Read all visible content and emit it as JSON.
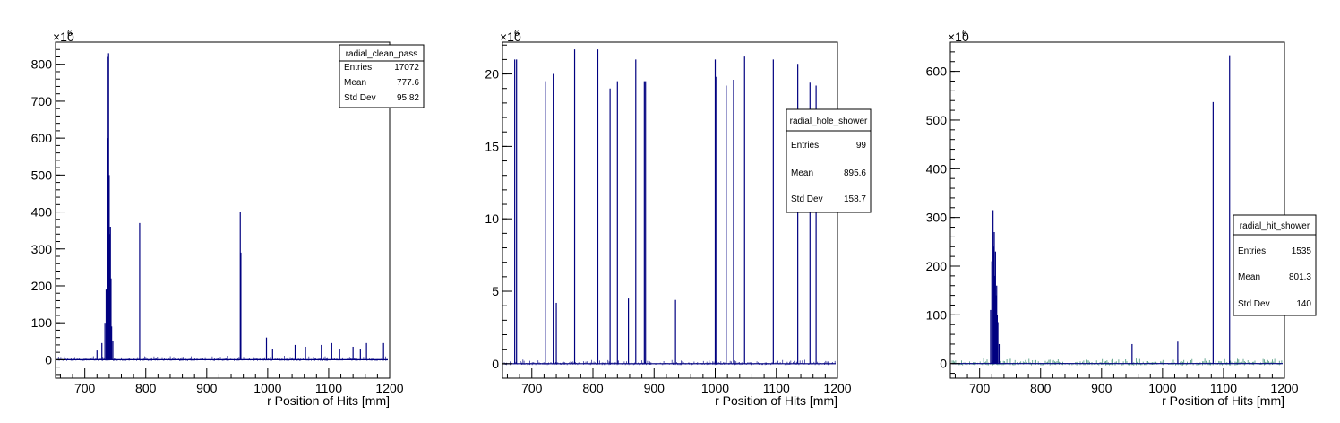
{
  "colors": {
    "hist": "#000080",
    "hist_alt": "#1a7a5a",
    "axis": "#000000"
  },
  "chart_data": [
    {
      "type": "bar",
      "name": "radial_clean_pass",
      "xlabel": "r Position of Hits [mm]",
      "ylabel": "",
      "y_multiplier": "×10",
      "y_exponent": "6",
      "xlim": [
        652,
        1200
      ],
      "ylim": [
        -50,
        860
      ],
      "xticks": [
        700,
        800,
        900,
        1000,
        1100,
        1200
      ],
      "yticks": [
        0,
        100,
        200,
        300,
        400,
        500,
        600,
        700,
        800
      ],
      "stats": {
        "title": "radial_clean_pass",
        "rows": [
          {
            "label": "Entries",
            "value": "17072"
          },
          {
            "label": "Mean",
            "value": "777.6"
          },
          {
            "label": "Std Dev",
            "value": "95.82"
          }
        ]
      },
      "spikes": [
        {
          "x": 720,
          "y": 25
        },
        {
          "x": 728,
          "y": 45
        },
        {
          "x": 733,
          "y": 100
        },
        {
          "x": 735,
          "y": 190
        },
        {
          "x": 737,
          "y": 820
        },
        {
          "x": 738,
          "y": 600
        },
        {
          "x": 739,
          "y": 830
        },
        {
          "x": 740,
          "y": 500
        },
        {
          "x": 741,
          "y": 340
        },
        {
          "x": 742,
          "y": 360
        },
        {
          "x": 743,
          "y": 220
        },
        {
          "x": 744,
          "y": 90
        },
        {
          "x": 746,
          "y": 50
        },
        {
          "x": 790,
          "y": 370
        },
        {
          "x": 955,
          "y": 400
        },
        {
          "x": 956,
          "y": 290
        },
        {
          "x": 998,
          "y": 60
        },
        {
          "x": 1008,
          "y": 30
        },
        {
          "x": 1045,
          "y": 40
        },
        {
          "x": 1062,
          "y": 35
        },
        {
          "x": 1088,
          "y": 40
        },
        {
          "x": 1105,
          "y": 45
        },
        {
          "x": 1118,
          "y": 30
        },
        {
          "x": 1140,
          "y": 35
        },
        {
          "x": 1152,
          "y": 30
        },
        {
          "x": 1162,
          "y": 45
        },
        {
          "x": 1190,
          "y": 45
        }
      ],
      "noise_level": 12
    },
    {
      "type": "bar",
      "name": "radial_hole_shower",
      "xlabel": "r Position of Hits [mm]",
      "ylabel": "",
      "y_multiplier": "×10",
      "y_exponent": "6",
      "xlim": [
        652,
        1200
      ],
      "ylim": [
        -1,
        22.2
      ],
      "xticks": [
        700,
        800,
        900,
        1000,
        1100,
        1200
      ],
      "yticks": [
        0,
        5,
        10,
        15,
        20
      ],
      "stats": {
        "title": "radial_hole_shower",
        "rows": [
          {
            "label": "Entries",
            "value": "99"
          },
          {
            "label": "Mean",
            "value": "895.6"
          },
          {
            "label": "Std Dev",
            "value": "158.7"
          }
        ]
      },
      "spikes": [
        {
          "x": 672,
          "y": 21
        },
        {
          "x": 675,
          "y": 21
        },
        {
          "x": 722,
          "y": 19.5
        },
        {
          "x": 735,
          "y": 20
        },
        {
          "x": 740,
          "y": 4.2
        },
        {
          "x": 770,
          "y": 21.7
        },
        {
          "x": 808,
          "y": 21.7
        },
        {
          "x": 828,
          "y": 19
        },
        {
          "x": 840,
          "y": 19.5
        },
        {
          "x": 858,
          "y": 4.5
        },
        {
          "x": 870,
          "y": 21
        },
        {
          "x": 884,
          "y": 19.5
        },
        {
          "x": 886,
          "y": 19.5
        },
        {
          "x": 935,
          "y": 4.4
        },
        {
          "x": 1000,
          "y": 21
        },
        {
          "x": 1002,
          "y": 19.8
        },
        {
          "x": 1018,
          "y": 19.2
        },
        {
          "x": 1030,
          "y": 19.6
        },
        {
          "x": 1048,
          "y": 21.2
        },
        {
          "x": 1095,
          "y": 21
        },
        {
          "x": 1135,
          "y": 20.7
        },
        {
          "x": 1155,
          "y": 19.4
        },
        {
          "x": 1165,
          "y": 19.2
        }
      ],
      "noise_level": 0.3
    },
    {
      "type": "bar",
      "name": "radial_hit_shower",
      "xlabel": "r Position of Hits [mm]",
      "ylabel": "",
      "y_multiplier": "×10",
      "y_exponent": "6",
      "xlim": [
        652,
        1200
      ],
      "ylim": [
        -30,
        660
      ],
      "xticks": [
        700,
        800,
        900,
        1000,
        1100,
        1200
      ],
      "yticks": [
        0,
        100,
        200,
        300,
        400,
        500,
        600
      ],
      "stats": {
        "title": "radial_hit_shower",
        "rows": [
          {
            "label": "Entries",
            "value": "1535"
          },
          {
            "label": "Mean",
            "value": "801.3"
          },
          {
            "label": "Std Dev",
            "value": "140"
          }
        ]
      },
      "spikes": [
        {
          "x": 718,
          "y": 110
        },
        {
          "x": 720,
          "y": 210
        },
        {
          "x": 722,
          "y": 315
        },
        {
          "x": 723,
          "y": 240
        },
        {
          "x": 724,
          "y": 270
        },
        {
          "x": 725,
          "y": 180
        },
        {
          "x": 726,
          "y": 230
        },
        {
          "x": 727,
          "y": 140
        },
        {
          "x": 728,
          "y": 160
        },
        {
          "x": 729,
          "y": 100
        },
        {
          "x": 730,
          "y": 85
        },
        {
          "x": 732,
          "y": 40
        },
        {
          "x": 950,
          "y": 40
        },
        {
          "x": 1025,
          "y": 45
        },
        {
          "x": 1083,
          "y": 537
        },
        {
          "x": 1110,
          "y": 633
        }
      ],
      "noise_level": 12
    }
  ]
}
